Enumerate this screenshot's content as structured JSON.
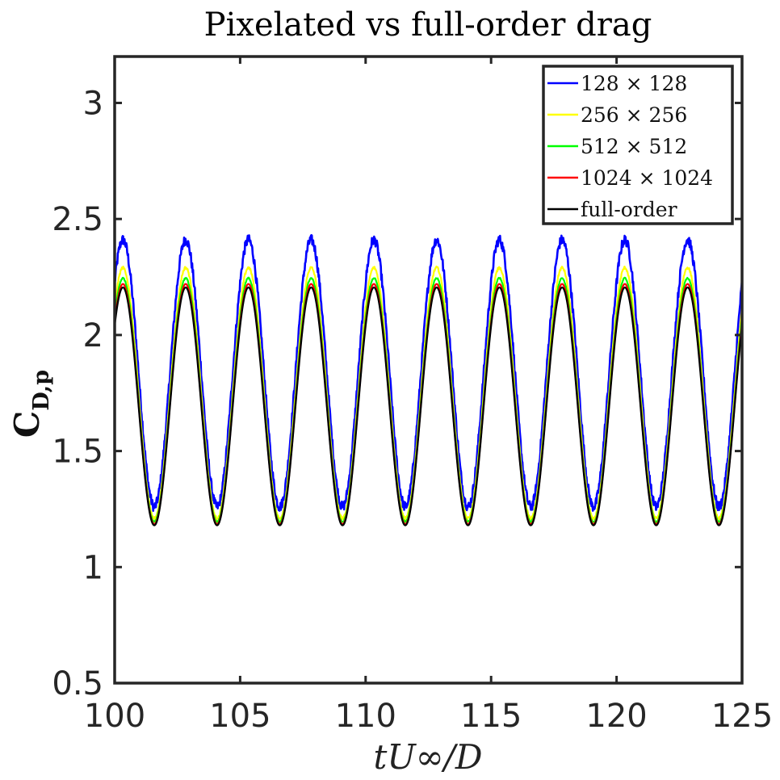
{
  "chart_data": {
    "type": "line",
    "title": "Pixelated vs full-order drag",
    "xlabel": "tU∞/D",
    "ylabel": "C",
    "ylabel_subscript": "D,p",
    "xlim": [
      100,
      125
    ],
    "ylim": [
      0.5,
      3.2
    ],
    "xticks": [
      100,
      105,
      110,
      115,
      120,
      125
    ],
    "xtick_labels": [
      "100",
      "105",
      "110",
      "115",
      "120",
      "125"
    ],
    "yticks": [
      0.5,
      1,
      1.5,
      2,
      2.5,
      3
    ],
    "ytick_labels": [
      "0.5",
      "1",
      "1.5",
      "2",
      "2.5",
      "3"
    ],
    "legend_location": "top-right",
    "grid": false,
    "period": 2.5,
    "phase_peak_x": 102.83,
    "series": [
      {
        "name": "128 × 128",
        "color": "#0000ff",
        "min": 1.26,
        "max": 2.41,
        "noise": 0.022
      },
      {
        "name": "256 × 256",
        "color": "#ffff00",
        "min": 1.21,
        "max": 2.29,
        "noise": 0.006
      },
      {
        "name": "512 × 512",
        "color": "#00ff00",
        "min": 1.195,
        "max": 2.245,
        "noise": 0.003
      },
      {
        "name": "1024 × 1024",
        "color": "#ff0000",
        "min": 1.185,
        "max": 2.22,
        "noise": 0.0
      },
      {
        "name": "full-order",
        "color": "#000000",
        "min": 1.18,
        "max": 2.205,
        "noise": 0.0
      }
    ]
  }
}
